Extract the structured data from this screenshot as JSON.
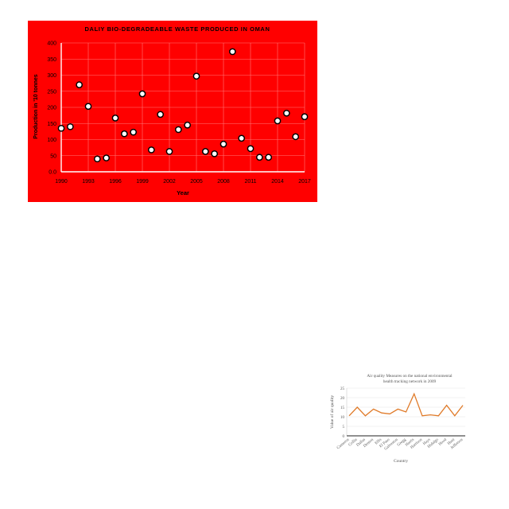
{
  "chart_data": [
    {
      "type": "scatter",
      "title": "DALIY BIO-DEGRADEABLE WASTE PRODUCED IN OMAN",
      "xlabel": "Year",
      "ylabel": "Production in '10 tonnes",
      "xlim": [
        1990,
        2017
      ],
      "ylim": [
        0,
        400
      ],
      "xticks": [
        "1990",
        "1993",
        "1996",
        "1999",
        "2002",
        "2005",
        "2008",
        "2011",
        "2014",
        "2017"
      ],
      "yticks": [
        "0.0",
        "50",
        "100",
        "150",
        "200",
        "250",
        "300",
        "350",
        "400"
      ],
      "grid": true,
      "x": [
        1990,
        1991,
        1992,
        1993,
        1994,
        1995,
        1996,
        1997,
        1998,
        1999,
        2000,
        2001,
        2002,
        2003,
        2004,
        2005,
        2006,
        2007,
        2008,
        2009,
        2010,
        2011,
        2012,
        2013,
        2014,
        2015,
        2016,
        2017
      ],
      "y": [
        135,
        140,
        270,
        203,
        40,
        43,
        167,
        118,
        123,
        242,
        68,
        178,
        63,
        131,
        145,
        297,
        63,
        56,
        86,
        373,
        104,
        72,
        45,
        45,
        158,
        182,
        109,
        171
      ],
      "colors": {
        "background": "#ff0000",
        "marker_fill": "#ffffff",
        "marker_edge": "#000000",
        "grid": "#ff7777",
        "text": "#000000"
      }
    },
    {
      "type": "line",
      "title": "Air quality Measures on the national environmental health tracking network in 2009",
      "xlabel": "Country",
      "ylabel": "Value of air quality",
      "ylim": [
        0,
        25
      ],
      "yticks": [
        "0",
        "5",
        "10",
        "15",
        "20",
        "25"
      ],
      "categories": [
        "Cameron",
        "Collin",
        "Dallas",
        "Denton",
        "Ellis",
        "El Paso",
        "Galveston",
        "Gregg",
        "Harris",
        "Harrison",
        "Hays",
        "Hidalgo",
        "Hood",
        "Hunt",
        "Jefferson"
      ],
      "values": [
        10.5,
        15,
        10.5,
        14,
        12,
        11.5,
        14,
        12.5,
        22,
        10.5,
        11,
        10.5,
        16,
        10.5,
        16
      ],
      "grid": true,
      "colors": {
        "line": "#e07b2a",
        "grid": "#e6e6e6",
        "text": "#555555"
      }
    }
  ]
}
